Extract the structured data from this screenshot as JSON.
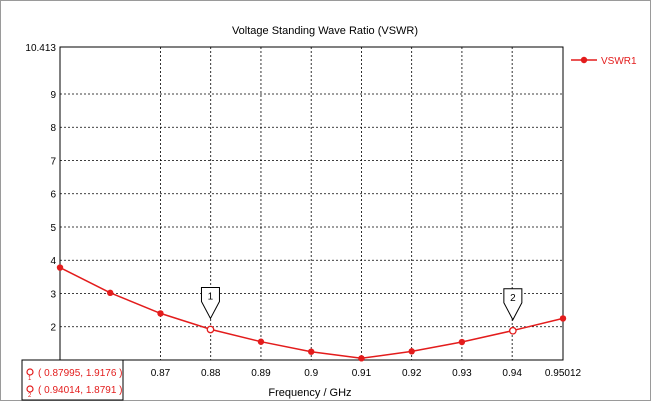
{
  "chart_data": {
    "type": "line",
    "title": "Voltage Standing Wave Ratio (VSWR)",
    "xlabel": "Frequency / GHz",
    "ylabel": "",
    "xlim": [
      0.85,
      0.95012
    ],
    "ylim": [
      1,
      10.413
    ],
    "x_ticks": [
      0.87,
      0.88,
      0.89,
      0.9,
      0.91,
      0.92,
      0.93,
      0.94,
      0.95012
    ],
    "x_tick_labels": [
      "0.87",
      "0.88",
      "0.89",
      "0.9",
      "0.91",
      "0.92",
      "0.93",
      "0.94",
      "0.95012"
    ],
    "y_ticks": [
      2,
      3,
      4,
      5,
      6,
      7,
      8,
      9,
      10.413
    ],
    "y_tick_labels": [
      "2",
      "3",
      "4",
      "5",
      "6",
      "7",
      "8",
      "9",
      "10.413"
    ],
    "grid": true,
    "legend_position": "top-right",
    "series": [
      {
        "name": "VSWR1",
        "color": "#e31c1c",
        "x": [
          0.85,
          0.86,
          0.87,
          0.88,
          0.89,
          0.9,
          0.91,
          0.92,
          0.93,
          0.94,
          0.95012
        ],
        "y": [
          3.78,
          3.02,
          2.4,
          1.92,
          1.55,
          1.25,
          1.05,
          1.26,
          1.54,
          1.88,
          2.25
        ]
      }
    ],
    "markers": [
      {
        "label": "1",
        "x": 0.87995,
        "y": 1.9176,
        "readout": "( 0.87995, 1.9176 )"
      },
      {
        "label": "2",
        "x": 0.94014,
        "y": 1.8791,
        "readout": "( 0.94014, 1.8791 )"
      }
    ]
  }
}
